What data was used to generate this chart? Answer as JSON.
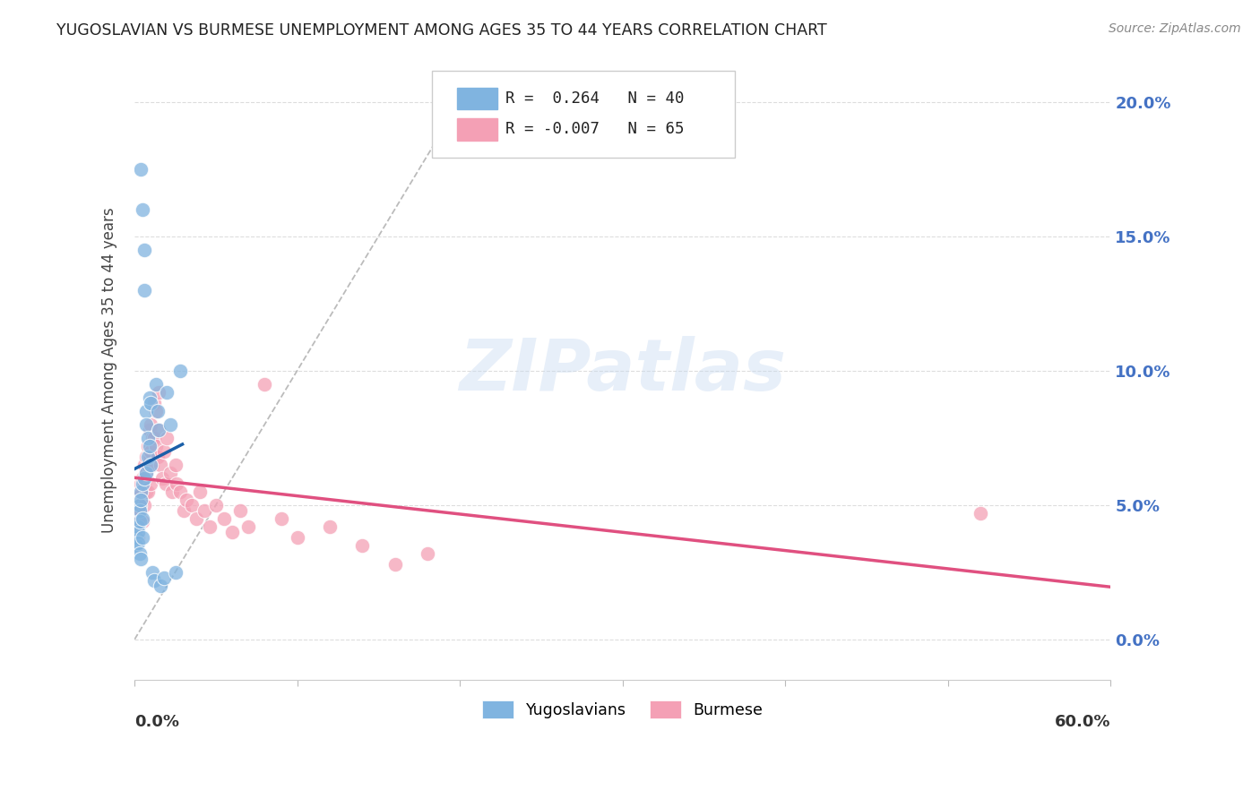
{
  "title": "YUGOSLAVIAN VS BURMESE UNEMPLOYMENT AMONG AGES 35 TO 44 YEARS CORRELATION CHART",
  "source": "Source: ZipAtlas.com",
  "ylabel": "Unemployment Among Ages 35 to 44 years",
  "ytick_labels": [
    "0.0%",
    "5.0%",
    "10.0%",
    "15.0%",
    "20.0%"
  ],
  "ytick_values": [
    0.0,
    0.05,
    0.1,
    0.15,
    0.2
  ],
  "xmin": 0.0,
  "xmax": 0.6,
  "ymin": -0.015,
  "ymax": 0.215,
  "legend_r_yug": "R =  0.264   N = 40",
  "legend_r_bur": "R = -0.007   N = 65",
  "yugoslavian_color": "#80b4e0",
  "burmese_color": "#f4a0b5",
  "trend_yug_color": "#1a5fa8",
  "trend_bur_color": "#e05080",
  "diagonal_color": "#b0b0b0",
  "background_color": "#ffffff",
  "watermark": "ZIPatlas",
  "grid_color": "#dddddd",
  "title_color": "#222222",
  "source_color": "#888888",
  "axis_label_color": "#444444",
  "ytick_color": "#4472c4",
  "xtick_color": "#333333",
  "yugoslavian_x": [
    0.001,
    0.001,
    0.002,
    0.002,
    0.002,
    0.003,
    0.003,
    0.003,
    0.003,
    0.004,
    0.004,
    0.004,
    0.004,
    0.005,
    0.005,
    0.005,
    0.005,
    0.006,
    0.006,
    0.006,
    0.007,
    0.007,
    0.007,
    0.008,
    0.008,
    0.009,
    0.009,
    0.01,
    0.01,
    0.011,
    0.012,
    0.013,
    0.014,
    0.015,
    0.016,
    0.018,
    0.02,
    0.022,
    0.025,
    0.028
  ],
  "yugoslavian_y": [
    0.038,
    0.035,
    0.042,
    0.04,
    0.036,
    0.05,
    0.048,
    0.044,
    0.032,
    0.055,
    0.052,
    0.03,
    0.175,
    0.16,
    0.058,
    0.045,
    0.038,
    0.145,
    0.13,
    0.06,
    0.085,
    0.08,
    0.062,
    0.075,
    0.068,
    0.09,
    0.072,
    0.088,
    0.065,
    0.025,
    0.022,
    0.095,
    0.085,
    0.078,
    0.02,
    0.023,
    0.092,
    0.08,
    0.025,
    0.1
  ],
  "burmese_x": [
    0.001,
    0.002,
    0.002,
    0.003,
    0.003,
    0.003,
    0.004,
    0.004,
    0.004,
    0.005,
    0.005,
    0.005,
    0.006,
    0.006,
    0.006,
    0.007,
    0.007,
    0.007,
    0.008,
    0.008,
    0.008,
    0.009,
    0.009,
    0.01,
    0.01,
    0.01,
    0.011,
    0.011,
    0.012,
    0.012,
    0.013,
    0.013,
    0.014,
    0.015,
    0.015,
    0.016,
    0.017,
    0.018,
    0.019,
    0.02,
    0.022,
    0.023,
    0.025,
    0.026,
    0.028,
    0.03,
    0.032,
    0.035,
    0.038,
    0.04,
    0.043,
    0.046,
    0.05,
    0.055,
    0.06,
    0.065,
    0.07,
    0.08,
    0.09,
    0.1,
    0.12,
    0.14,
    0.16,
    0.18,
    0.52
  ],
  "burmese_y": [
    0.045,
    0.042,
    0.038,
    0.055,
    0.05,
    0.046,
    0.058,
    0.054,
    0.048,
    0.06,
    0.052,
    0.044,
    0.065,
    0.058,
    0.05,
    0.068,
    0.062,
    0.055,
    0.072,
    0.065,
    0.055,
    0.078,
    0.068,
    0.08,
    0.07,
    0.058,
    0.075,
    0.065,
    0.088,
    0.075,
    0.085,
    0.072,
    0.068,
    0.092,
    0.078,
    0.065,
    0.06,
    0.07,
    0.058,
    0.075,
    0.062,
    0.055,
    0.065,
    0.058,
    0.055,
    0.048,
    0.052,
    0.05,
    0.045,
    0.055,
    0.048,
    0.042,
    0.05,
    0.045,
    0.04,
    0.048,
    0.042,
    0.095,
    0.045,
    0.038,
    0.042,
    0.035,
    0.028,
    0.032,
    0.047
  ]
}
